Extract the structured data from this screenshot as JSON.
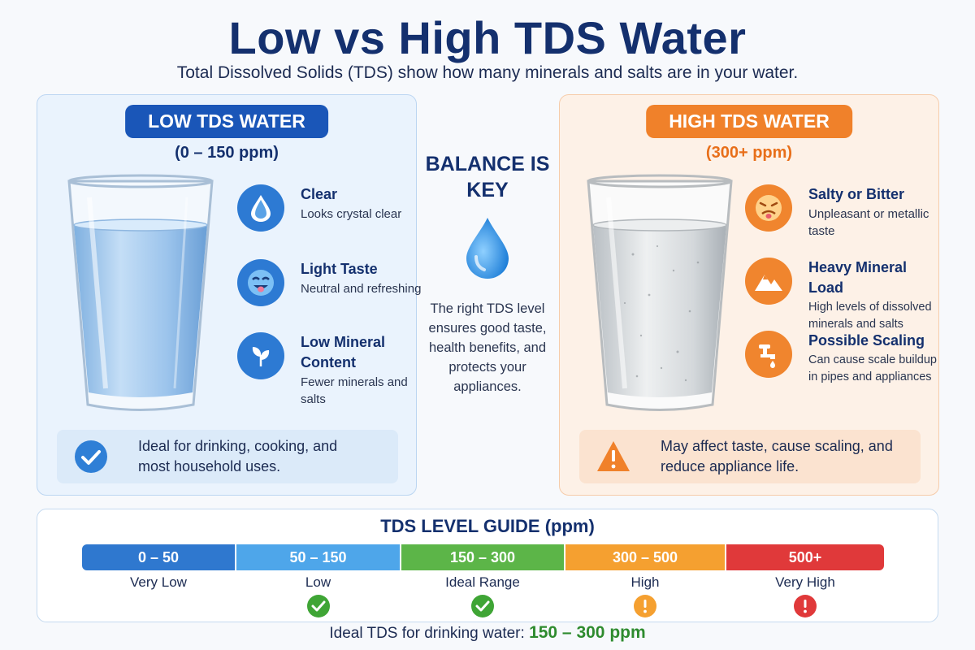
{
  "header": {
    "title": "Low vs High TDS Water",
    "subtitle": "Total Dissolved Solids (TDS) show how many minerals and salts are in your water."
  },
  "low": {
    "badge": "LOW TDS WATER",
    "range": "(0 – 150 ppm)",
    "features": [
      {
        "title": "Clear",
        "desc": "Looks crystal clear",
        "icon": "water-drop-icon"
      },
      {
        "title": "Light Taste",
        "desc": "Neutral and refreshing",
        "icon": "smiley-tongue-icon"
      },
      {
        "title": "Low Mineral Content",
        "desc": "Fewer minerals and salts",
        "icon": "leaf-icon"
      }
    ],
    "note": "Ideal for drinking, cooking, and most household uses.",
    "note_icon": "check-circle-icon"
  },
  "center": {
    "title": "BALANCE IS KEY",
    "body": "The right TDS level ensures good taste, health benefits, and protects your appliances.",
    "icon": "water-drop-icon"
  },
  "high": {
    "badge": "HIGH TDS WATER",
    "range": "(300+ ppm)",
    "features": [
      {
        "title": "Salty or Bitter",
        "desc": "Unpleasant or metallic taste",
        "icon": "disgusted-face-icon"
      },
      {
        "title": "Heavy Mineral Load",
        "desc": "High levels of dissolved minerals and salts",
        "icon": "mountain-icon"
      },
      {
        "title": "Possible Scaling",
        "desc": "Can cause scale buildup in pipes and appliances",
        "icon": "faucet-icon"
      }
    ],
    "note": "May affect taste, cause scaling, and reduce appliance life.",
    "note_icon": "warning-triangle-icon"
  },
  "guide": {
    "title": "TDS LEVEL GUIDE (ppm)",
    "levels": [
      {
        "range": "0 – 50",
        "label": "Very Low",
        "color": "#2f78cf",
        "mark": ""
      },
      {
        "range": "50 – 150",
        "label": "Low",
        "color": "#4ea6ea",
        "mark": "check"
      },
      {
        "range": "150 – 300",
        "label": "Ideal Range",
        "color": "#5cb548",
        "mark": "check"
      },
      {
        "range": "300 – 500",
        "label": "High",
        "color": "#f5a030",
        "mark": "caution"
      },
      {
        "range": "500+",
        "label": "Very High",
        "color": "#e0393a",
        "mark": "alert"
      }
    ],
    "ideal_prefix": "Ideal TDS for drinking water:",
    "ideal_value": "150 – 300 ppm"
  },
  "colors": {
    "navy": "#14306e",
    "low_accent": "#1a56b8",
    "high_accent": "#f0812a",
    "check_green": "#3fa535",
    "alert_red": "#e0393a"
  }
}
